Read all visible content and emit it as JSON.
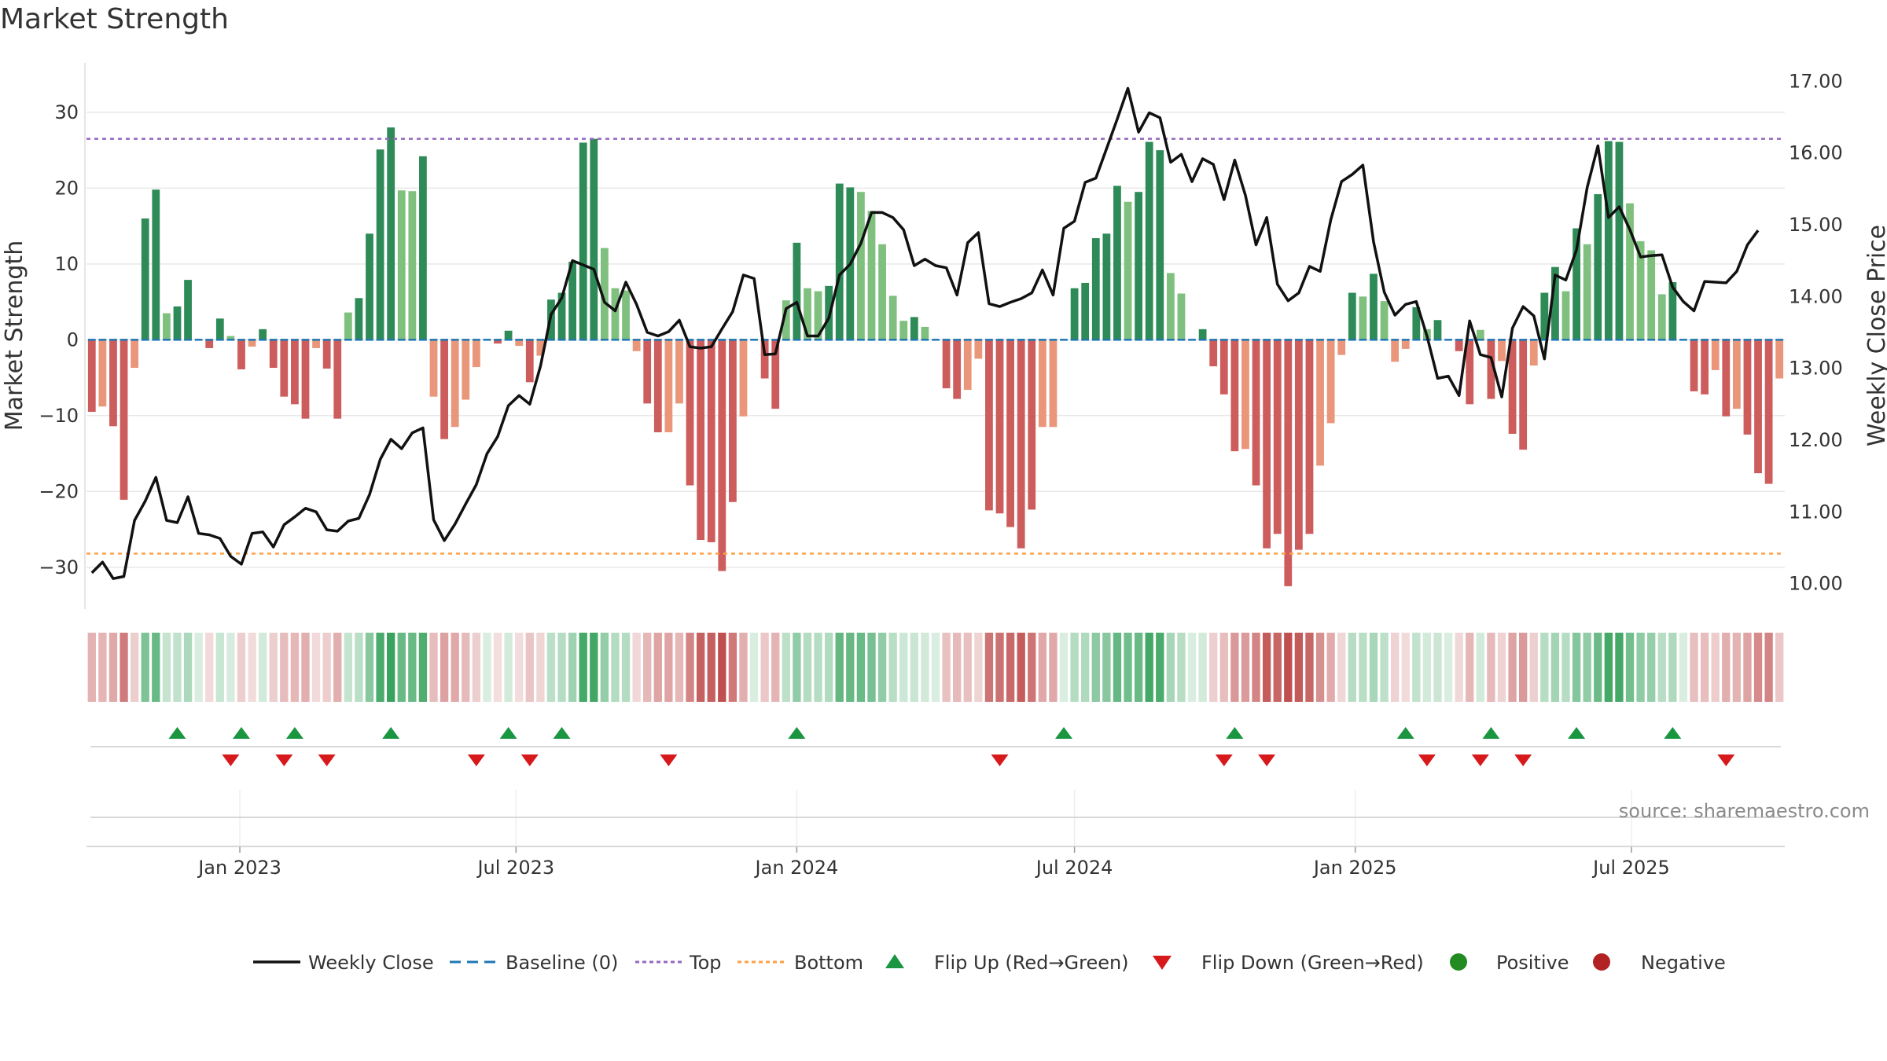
{
  "chart_data": {
    "type": "bar",
    "title": "Market Strength",
    "ylabel": "Market Strength",
    "y2label": "Weekly Close Price",
    "ylim": [
      -35,
      36
    ],
    "y2lim": [
      9.7,
      17.2
    ],
    "yticks": [
      30,
      20,
      10,
      0,
      -10,
      -20,
      -30
    ],
    "y2ticks": [
      17.0,
      16.0,
      15.0,
      14.0,
      13.0,
      12.0,
      11.0,
      10.0
    ],
    "top_line": 26.5,
    "bottom_line": -28.2,
    "start_date": "2022-09-26",
    "end_date": "2025-09-29",
    "x_ticks": [
      {
        "label": "Jan 2023",
        "date": "2023-01-01"
      },
      {
        "label": "Jul 2023",
        "date": "2023-07-01"
      },
      {
        "label": "Jan 2024",
        "date": "2024-01-01"
      },
      {
        "label": "Jul 2024",
        "date": "2024-07-01"
      },
      {
        "label": "Jan 2025",
        "date": "2025-01-01"
      },
      {
        "label": "Jul 2025",
        "date": "2025-07-01"
      }
    ],
    "strength": [
      -9.5,
      -8.8,
      -11.4,
      -21.1,
      -3.7,
      16,
      19.8,
      3.5,
      4.4,
      7.9,
      0,
      -1.1,
      2.8,
      0.5,
      -3.9,
      -0.9,
      1.4,
      -3.7,
      -7.5,
      -8.5,
      -10.4,
      -1.1,
      -3.8,
      -10.4,
      3.6,
      5.5,
      14,
      25.1,
      28,
      19.7,
      19.6,
      24.2,
      -7.5,
      -13.1,
      -11.5,
      -7.9,
      -3.6,
      0,
      -0.5,
      1.2,
      -0.8,
      -5.6,
      -2.1,
      5.3,
      6.2,
      10.3,
      26,
      26.5,
      12.1,
      6.8,
      6.5,
      -1.5,
      -8.4,
      -12.2,
      -12.2,
      -8.4,
      -19.2,
      -26.4,
      -26.7,
      -30.5,
      -21.4,
      -10.1,
      0,
      -5.1,
      -9.1,
      5.2,
      12.8,
      6.8,
      6.4,
      7.1,
      20.6,
      20.1,
      19.5,
      17,
      12.6,
      5.8,
      2.5,
      3,
      1.7,
      0,
      -6.4,
      -7.8,
      -6.6,
      -2.5,
      -22.5,
      -22.9,
      -24.7,
      -27.5,
      -22.4,
      -11.5,
      -11.5,
      0,
      6.8,
      7.5,
      13.4,
      14,
      20.3,
      18.2,
      19.5,
      26.1,
      25,
      8.8,
      6.1,
      0,
      1.4,
      -3.5,
      -7.2,
      -14.7,
      -14.4,
      -19.2,
      -27.5,
      -25.6,
      -32.5,
      -27.7,
      -25.6,
      -16.6,
      -11,
      -2,
      6.2,
      5.7,
      8.7,
      5.1,
      -2.9,
      -1.2,
      4.3,
      1.4,
      2.6,
      0,
      -1.5,
      -8.5,
      1.3,
      -7.8,
      -2.8,
      -12.4,
      -14.5,
      -3.4,
      6.2,
      9.6,
      6.4,
      14.7,
      12.6,
      19.2,
      26.2,
      26.1,
      18,
      13,
      11.8,
      6,
      7.6,
      0,
      -6.8,
      -7.2,
      -4,
      -10.1,
      -9.1,
      -12.5,
      -17.6,
      -19,
      -5.1
    ],
    "price": [
      10.15,
      10.3,
      10.07,
      10.1,
      10.88,
      11.15,
      11.48,
      10.88,
      10.85,
      11.21,
      10.7,
      10.68,
      10.63,
      10.38,
      10.27,
      10.7,
      10.72,
      10.51,
      10.82,
      10.93,
      11.05,
      11,
      10.75,
      10.73,
      10.87,
      10.91,
      11.24,
      11.73,
      12.01,
      11.88,
      12.1,
      12.17,
      10.89,
      10.6,
      10.83,
      11.11,
      11.38,
      11.81,
      12.05,
      12.48,
      12.62,
      12.5,
      13.03,
      13.75,
      13.98,
      14.5,
      14.44,
      14.38,
      13.92,
      13.8,
      14.2,
      13.89,
      13.5,
      13.45,
      13.51,
      13.67,
      13.3,
      13.28,
      13.3,
      13.55,
      13.79,
      14.3,
      14.25,
      13.19,
      13.2,
      13.83,
      13.92,
      13.45,
      13.45,
      13.7,
      14.3,
      14.45,
      14.74,
      15.17,
      15.17,
      15.1,
      14.93,
      14.43,
      14.52,
      14.43,
      14.4,
      14.02,
      14.75,
      14.89,
      13.9,
      13.86,
      13.92,
      13.97,
      14.05,
      14.37,
      14.02,
      14.95,
      15.05,
      15.59,
      15.65,
      16.06,
      16.47,
      16.9,
      16.29,
      16.56,
      16.49,
      15.87,
      15.98,
      15.6,
      15.92,
      15.84,
      15.35,
      15.9,
      15.41,
      14.72,
      15.1,
      14.17,
      13.94,
      14.05,
      14.42,
      14.35,
      15.07,
      15.6,
      15.7,
      15.83,
      14.76,
      14.06,
      13.74,
      13.89,
      13.93,
      13.45,
      12.86,
      12.89,
      12.62,
      13.66,
      13.19,
      13.15,
      12.6,
      13.56,
      13.86,
      13.73,
      13.13,
      14.3,
      14.23,
      14.65,
      15.52,
      16.1,
      15.1,
      15.25,
      14.93,
      14.55,
      14.57,
      14.58,
      14.13,
      13.93,
      13.8,
      14.21,
      14.2,
      14.19,
      14.35,
      14.72,
      14.92
    ],
    "flip_up": [
      "2022-11-21",
      "2023-01-02",
      "2023-02-06",
      "2023-04-10",
      "2023-06-26",
      "2023-07-31",
      "2024-01-01",
      "2024-06-24",
      "2024-10-14",
      "2025-02-03",
      "2025-03-31",
      "2025-05-26",
      "2025-07-28"
    ],
    "flip_down": [
      "2022-12-26",
      "2023-01-30",
      "2023-02-27",
      "2023-06-05",
      "2023-07-10",
      "2023-10-09",
      "2024-05-13",
      "2024-10-07",
      "2024-11-04",
      "2025-02-17",
      "2025-03-24",
      "2025-04-21",
      "2025-09-01"
    ],
    "legend": [
      "Weekly Close",
      "Baseline (0)",
      "Top",
      "Bottom",
      "Flip Up (Red→Green)",
      "Flip Down (Green→Red)",
      "Positive",
      "Negative"
    ],
    "source": "source: sharemaestro.com",
    "colors": {
      "pos_strong": "#2e8b57",
      "pos_weak": "#7fc07f",
      "neg_strong": "#cd5c5c",
      "neg_weak": "#e9967a",
      "price_line": "#111111",
      "baseline": "#1f77b4",
      "top": "#9467bd",
      "bottom": "#ff9f43",
      "flip_up": "#1a9641",
      "flip_down": "#d7191c",
      "legend_positive": "#228b22",
      "legend_negative": "#b22222"
    }
  }
}
